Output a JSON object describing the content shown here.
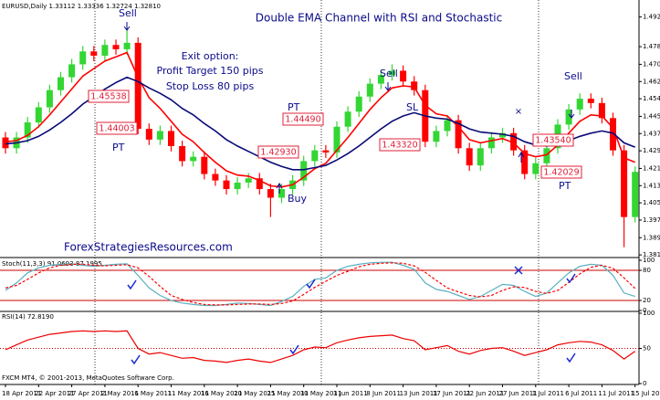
{
  "chart_data": [
    {
      "type": "candlestick",
      "title": "Double EMA Channel with RSI and Stochastic",
      "header": "EURUSD,Daily  1.33112 1.33336 1.32724 1.32810",
      "open": [
        1.436,
        1.431,
        1.436,
        1.443,
        1.45,
        1.458,
        1.464,
        1.47,
        1.476,
        1.474,
        1.479,
        1.477,
        1.48,
        1.44,
        1.435,
        1.439,
        1.432,
        1.425,
        1.427,
        1.419,
        1.416,
        1.412,
        1.415,
        1.417,
        1.412,
        1.408,
        1.412,
        1.416,
        1.425,
        1.43,
        1.429,
        1.441,
        1.448,
        1.455,
        1.461,
        1.465,
        1.467,
        1.462,
        1.458,
        1.434,
        1.439,
        1.444,
        1.431,
        1.423,
        1.431,
        1.436,
        1.438,
        1.43,
        1.419,
        1.424,
        1.431,
        1.442,
        1.449,
        1.454,
        1.452,
        1.445,
        1.43,
        1.399
      ],
      "high": [
        1.4385,
        1.4385,
        1.4455,
        1.4525,
        1.4605,
        1.4665,
        1.4725,
        1.4785,
        1.4785,
        1.4815,
        1.4815,
        1.487,
        1.4825,
        1.4425,
        1.4415,
        1.4415,
        1.4345,
        1.4295,
        1.4295,
        1.4215,
        1.4185,
        1.4175,
        1.4195,
        1.4195,
        1.4145,
        1.4145,
        1.4185,
        1.4275,
        1.4325,
        1.4325,
        1.4435,
        1.4505,
        1.4575,
        1.4635,
        1.4675,
        1.47,
        1.4695,
        1.4645,
        1.4605,
        1.4415,
        1.4465,
        1.4465,
        1.4335,
        1.4335,
        1.4385,
        1.4405,
        1.4405,
        1.4325,
        1.4265,
        1.4335,
        1.4445,
        1.4515,
        1.4565,
        1.4565,
        1.4545,
        1.4475,
        1.4325,
        1.4225
      ],
      "low": [
        1.4285,
        1.4285,
        1.4335,
        1.4405,
        1.4475,
        1.4555,
        1.4615,
        1.4675,
        1.4715,
        1.4715,
        1.4745,
        1.4745,
        1.4375,
        1.4325,
        1.4325,
        1.4295,
        1.4225,
        1.4225,
        1.4165,
        1.4135,
        1.4095,
        1.4095,
        1.4125,
        1.4095,
        1.399,
        1.4055,
        1.4095,
        1.4135,
        1.4225,
        1.4265,
        1.4265,
        1.4385,
        1.4455,
        1.4525,
        1.4585,
        1.4625,
        1.4595,
        1.4555,
        1.4315,
        1.4315,
        1.4365,
        1.4285,
        1.4205,
        1.4205,
        1.4285,
        1.4335,
        1.4275,
        1.4165,
        1.4165,
        1.4215,
        1.4285,
        1.4395,
        1.4465,
        1.4495,
        1.4425,
        1.4275,
        1.385,
        1.3965
      ],
      "close": [
        1.431,
        1.436,
        1.443,
        1.45,
        1.458,
        1.464,
        1.47,
        1.476,
        1.474,
        1.479,
        1.477,
        1.48,
        1.44,
        1.435,
        1.439,
        1.432,
        1.425,
        1.427,
        1.419,
        1.416,
        1.412,
        1.415,
        1.417,
        1.412,
        1.408,
        1.412,
        1.416,
        1.425,
        1.43,
        1.429,
        1.441,
        1.448,
        1.455,
        1.461,
        1.465,
        1.467,
        1.462,
        1.458,
        1.434,
        1.439,
        1.444,
        1.431,
        1.423,
        1.431,
        1.436,
        1.438,
        1.43,
        1.419,
        1.424,
        1.431,
        1.442,
        1.449,
        1.454,
        1.452,
        1.445,
        1.43,
        1.399,
        1.42
      ],
      "up_color": "#33d633",
      "down_color": "#ff0000",
      "series": [
        {
          "color": "#ff0000",
          "values": [
            1.434,
            1.4345,
            1.437,
            1.441,
            1.4465,
            1.4525,
            1.4585,
            1.4645,
            1.468,
            1.4715,
            1.4735,
            1.4755,
            1.464,
            1.4545,
            1.4495,
            1.4435,
            1.4375,
            1.434,
            1.429,
            1.4245,
            1.4205,
            1.4185,
            1.418,
            1.416,
            1.4135,
            1.413,
            1.414,
            1.4175,
            1.4215,
            1.424,
            1.43,
            1.436,
            1.4425,
            1.449,
            1.4545,
            1.459,
            1.46,
            1.4595,
            1.451,
            1.447,
            1.446,
            1.441,
            1.435,
            1.4335,
            1.4345,
            1.4355,
            1.4335,
            1.4285,
            1.427,
            1.428,
            1.4325,
            1.438,
            1.4435,
            1.4465,
            1.446,
            1.4405,
            1.4265,
            1.4245
          ]
        },
        {
          "color": "#0a0a78",
          "values": [
            1.433,
            1.4335,
            1.4345,
            1.4365,
            1.4395,
            1.443,
            1.447,
            1.4515,
            1.455,
            1.4585,
            1.4615,
            1.464,
            1.462,
            1.459,
            1.4565,
            1.4535,
            1.4495,
            1.4465,
            1.4425,
            1.439,
            1.435,
            1.432,
            1.4295,
            1.427,
            1.4245,
            1.4225,
            1.421,
            1.421,
            1.422,
            1.423,
            1.4255,
            1.4285,
            1.432,
            1.436,
            1.44,
            1.4435,
            1.446,
            1.4475,
            1.446,
            1.445,
            1.4445,
            1.4425,
            1.44,
            1.4385,
            1.438,
            1.4375,
            1.4365,
            1.434,
            1.4325,
            1.432,
            1.433,
            1.4345,
            1.4365,
            1.438,
            1.439,
            1.438,
            1.4335,
            1.4315
          ]
        }
      ],
      "ylim": [
        1.3806,
        1.4982
      ],
      "yticks": [
        {
          "value": 1.492,
          "label": "1.49200"
        },
        {
          "value": 1.4782,
          "label": "1.47820"
        },
        {
          "value": 1.47,
          "label": "1.47000"
        },
        {
          "value": 1.462,
          "label": "1.46200"
        },
        {
          "value": 1.454,
          "label": "1.45400"
        },
        {
          "value": 1.4458,
          "label": "1.44580"
        },
        {
          "value": 1.4378,
          "label": "1.43780"
        },
        {
          "value": 1.4298,
          "label": "1.42980"
        },
        {
          "value": 1.4216,
          "label": "1.42160"
        },
        {
          "value": 1.4136,
          "label": "1.41360"
        },
        {
          "value": 1.4056,
          "label": "1.40560"
        },
        {
          "value": 1.3976,
          "label": "1.39760"
        },
        {
          "value": 1.3894,
          "label": "1.38940"
        },
        {
          "value": 1.3814,
          "label": "1.38140"
        }
      ],
      "grid": false,
      "annotations": [
        "Sell",
        "Exit option:",
        "Profit Target 150 pips",
        "Stop Loss 80 pips",
        "1.45538",
        "1.44003",
        "PT",
        "PT",
        "1.44490",
        "1.42930",
        "Buy",
        "Sell",
        "SL",
        "1.43320",
        "Sell",
        "1.43540",
        "1.42029",
        "PT",
        "ForexStrategiesResources.com"
      ]
    },
    {
      "type": "line",
      "title": "Stoch(11,3,3) 91.0693 87.1995",
      "series": [
        {
          "color": "#5ab0c0",
          "values": [
            40,
            55,
            75,
            85,
            90,
            92,
            93,
            90,
            88,
            90,
            92,
            93,
            70,
            45,
            30,
            20,
            15,
            12,
            10,
            10,
            12,
            15,
            14,
            12,
            10,
            18,
            28,
            48,
            62,
            65,
            80,
            88,
            92,
            95,
            96,
            96,
            90,
            82,
            55,
            42,
            38,
            30,
            22,
            28,
            40,
            52,
            50,
            38,
            28,
            35,
            55,
            75,
            88,
            92,
            90,
            70,
            35,
            28
          ]
        },
        {
          "color": "#ff0000",
          "dashed": true,
          "values": [
            45,
            50,
            62,
            75,
            85,
            90,
            92,
            92,
            90,
            89,
            90,
            91,
            85,
            68,
            48,
            30,
            22,
            16,
            12,
            11,
            11,
            12,
            13,
            13,
            12,
            14,
            19,
            32,
            46,
            58,
            70,
            78,
            87,
            92,
            94,
            95,
            94,
            89,
            76,
            60,
            45,
            37,
            30,
            27,
            30,
            40,
            47,
            46,
            38,
            34,
            40,
            56,
            73,
            86,
            90,
            84,
            65,
            44
          ]
        }
      ],
      "ylim": [
        0,
        100
      ],
      "yticks": [
        100,
        80,
        20,
        0
      ],
      "grid": true,
      "grid_color": "#cc0000",
      "grid_style": "solid"
    },
    {
      "type": "line",
      "title": "RSI(14) 72.8190",
      "series": [
        {
          "color": "#ee0000",
          "values": [
            48,
            55,
            62,
            66,
            70,
            72,
            74,
            75,
            74,
            75,
            74,
            75,
            50,
            42,
            44,
            40,
            36,
            37,
            33,
            32,
            30,
            33,
            35,
            32,
            30,
            35,
            40,
            48,
            52,
            51,
            58,
            62,
            65,
            67,
            68,
            69,
            64,
            61,
            48,
            51,
            54,
            46,
            42,
            47,
            50,
            51,
            46,
            40,
            44,
            48,
            55,
            58,
            60,
            59,
            55,
            47,
            35,
            46
          ]
        }
      ],
      "ylim": [
        0,
        100
      ],
      "yticks": [
        100,
        50,
        0
      ],
      "grid": true,
      "grid_color": "#cc0000",
      "grid_style": "dotted",
      "categories": [
        "18 Apr 2011",
        null,
        null,
        "22 Apr 2011",
        null,
        null,
        "27 Apr 2011",
        null,
        null,
        "2 May 2011",
        null,
        null,
        "6 May 2011",
        null,
        null,
        "11 May 2011",
        null,
        null,
        "16 May 2011",
        null,
        null,
        "20 May 2011",
        null,
        null,
        "25 May 2011",
        null,
        null,
        "30 May 2011",
        null,
        null,
        "3 Jun 2011",
        null,
        null,
        "8 Jun 2011",
        null,
        null,
        "13 Jun 2011",
        null,
        null,
        "17 Jun 2011",
        null,
        null,
        "22 Jun 2011",
        null,
        null,
        "27 Jun 2011",
        null,
        null,
        "1 Jul 2011",
        null,
        null,
        "6 Jul 2011",
        null,
        null,
        "11 Jul 2011",
        null,
        null,
        "15 Jul 2011"
      ]
    }
  ],
  "footer": "FXCM MT4, © 2001-2013, MetaQuotes Software Corp."
}
